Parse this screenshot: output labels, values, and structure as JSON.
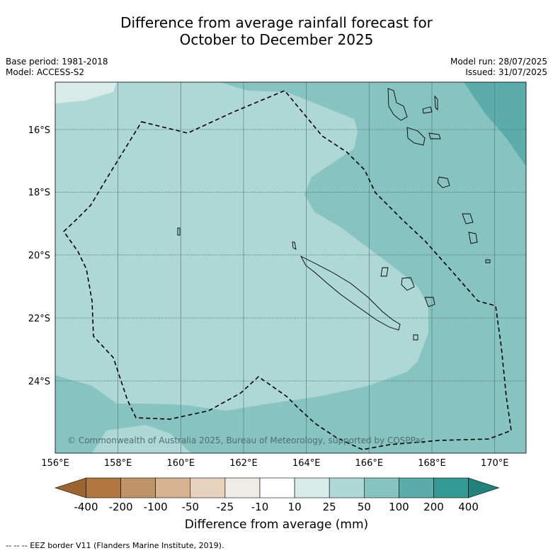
{
  "title_line1": "Difference from average rainfall forecast for",
  "title_line2": "October to December 2025",
  "base_period": "Base period: 1981-2018",
  "model": "Model: ACCESS-S2",
  "model_run": "Model run: 28/07/2025",
  "issued": "Issued: 31/07/2025",
  "copyright": "© Commonwealth of Australia 2025, Bureau of Meteorology, supported by COSPPac",
  "lon_labels": [
    "156°E",
    "158°E",
    "160°E",
    "162°E",
    "164°E",
    "166°E",
    "168°E",
    "170°E"
  ],
  "lat_labels": [
    "16°S",
    "18°S",
    "20°S",
    "22°S",
    "24°S"
  ],
  "colorbar": {
    "title": "Difference from average (mm)",
    "ticks": [
      "-400",
      "-200",
      "-100",
      "-50",
      "-25",
      "-10",
      "10",
      "25",
      "50",
      "100",
      "200",
      "400"
    ],
    "colors": [
      "#9c6530",
      "#b07840",
      "#c19368",
      "#d5b290",
      "#e7d2bd",
      "#efebe7",
      "#ffffff",
      "#d7ebe9",
      "#aed7d6",
      "#87c3c1",
      "#5bacab",
      "#359995",
      "#24807a"
    ]
  },
  "footnote": "-- -- -- EEZ border V11 (Flanders Marine Institute, 2019)."
}
